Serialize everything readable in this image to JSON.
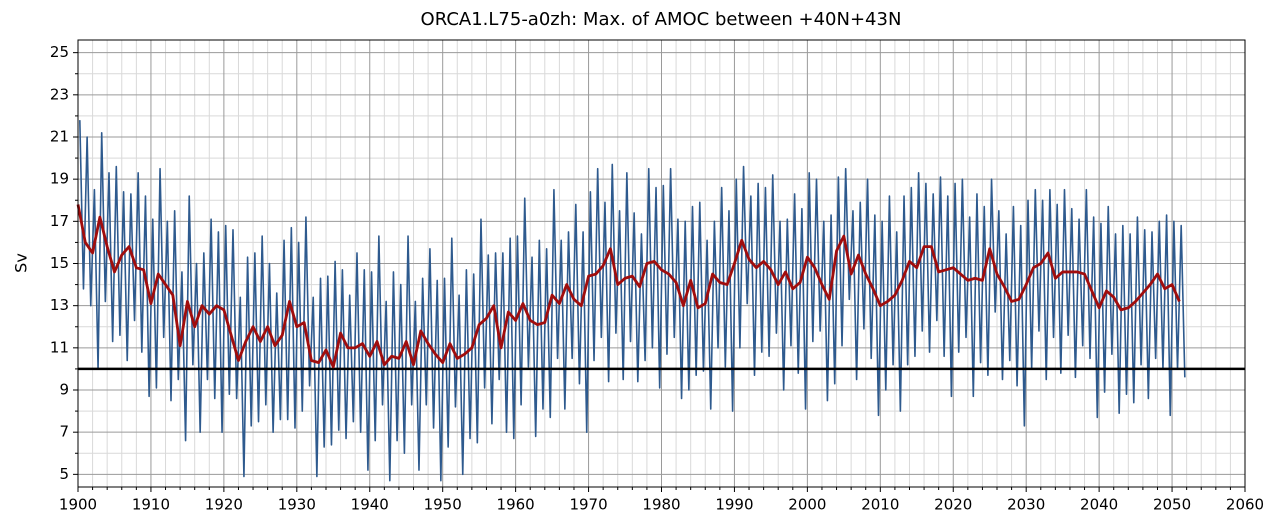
{
  "chart_data": {
    "type": "line",
    "title": "ORCA1.L75-a0zh: Max. of AMOC between +40N+43N",
    "ylabel": "Sv",
    "xlim": [
      1900,
      2060
    ],
    "ylim": [
      4.4,
      25.6
    ],
    "xticks": [
      1900,
      1910,
      1920,
      1930,
      1940,
      1950,
      1960,
      1970,
      1980,
      1990,
      2000,
      2010,
      2020,
      2030,
      2040,
      2050,
      2060
    ],
    "yticks": [
      5,
      7,
      9,
      11,
      13,
      15,
      17,
      19,
      21,
      23,
      25
    ],
    "xminorticks": [
      1902,
      1904,
      1906,
      1908,
      1912,
      1914,
      1916,
      1918,
      1922,
      1924,
      1926,
      1928,
      1932,
      1934,
      1936,
      1938,
      1942,
      1944,
      1946,
      1948,
      1952,
      1954,
      1956,
      1958,
      1962,
      1964,
      1966,
      1968,
      1972,
      1974,
      1976,
      1978,
      1982,
      1984,
      1986,
      1988,
      1992,
      1994,
      1996,
      1998,
      2002,
      2004,
      2006,
      2008,
      2012,
      2014,
      2016,
      2018,
      2022,
      2024,
      2026,
      2028,
      2032,
      2034,
      2036,
      2038,
      2042,
      2044,
      2046,
      2048,
      2052,
      2054,
      2056,
      2058
    ],
    "yminorticks": [
      6,
      8,
      10,
      12,
      14,
      16,
      18,
      20,
      22,
      24
    ],
    "grid": true,
    "hline": 10,
    "hline_color": "#000000",
    "series": [
      {
        "color": "#2e5a8e",
        "x": [
          1900.25,
          1900.75,
          1901.25,
          1901.75,
          1902.25,
          1902.75,
          1903.25,
          1903.75,
          1904.25,
          1904.75,
          1905.25,
          1905.75,
          1906.25,
          1906.75,
          1907.25,
          1907.75,
          1908.25,
          1908.75,
          1909.25,
          1909.75,
          1910.25,
          1910.75,
          1911.25,
          1911.75,
          1912.25,
          1912.75,
          1913.25,
          1913.75,
          1914.25,
          1914.75,
          1915.25,
          1915.75,
          1916.25,
          1916.75,
          1917.25,
          1917.75,
          1918.25,
          1918.75,
          1919.25,
          1919.75,
          1920.25,
          1920.75,
          1921.25,
          1921.75,
          1922.25,
          1922.75,
          1923.25,
          1923.75,
          1924.25,
          1924.75,
          1925.25,
          1925.75,
          1926.25,
          1926.75,
          1927.25,
          1927.75,
          1928.25,
          1928.75,
          1929.25,
          1929.75,
          1930.25,
          1930.75,
          1931.25,
          1931.75,
          1932.25,
          1932.75,
          1933.25,
          1933.75,
          1934.25,
          1934.75,
          1935.25,
          1935.75,
          1936.25,
          1936.75,
          1937.25,
          1937.75,
          1938.25,
          1938.75,
          1939.25,
          1939.75,
          1940.25,
          1940.75,
          1941.25,
          1941.75,
          1942.25,
          1942.75,
          1943.25,
          1943.75,
          1944.25,
          1944.75,
          1945.25,
          1945.75,
          1946.25,
          1946.75,
          1947.25,
          1947.75,
          1948.25,
          1948.75,
          1949.25,
          1949.75,
          1950.25,
          1950.75,
          1951.25,
          1951.75,
          1952.25,
          1952.75,
          1953.25,
          1953.75,
          1954.25,
          1954.75,
          1955.25,
          1955.75,
          1956.25,
          1956.75,
          1957.25,
          1957.75,
          1958.25,
          1958.75,
          1959.25,
          1959.75,
          1960.25,
          1960.75,
          1961.25,
          1961.75,
          1962.25,
          1962.75,
          1963.25,
          1963.75,
          1964.25,
          1964.75,
          1965.25,
          1965.75,
          1966.25,
          1966.75,
          1967.25,
          1967.75,
          1968.25,
          1968.75,
          1969.25,
          1969.75,
          1970.25,
          1970.75,
          1971.25,
          1971.75,
          1972.25,
          1972.75,
          1973.25,
          1973.75,
          1974.25,
          1974.75,
          1975.25,
          1975.75,
          1976.25,
          1976.75,
          1977.25,
          1977.75,
          1978.25,
          1978.75,
          1979.25,
          1979.75,
          1980.25,
          1980.75,
          1981.25,
          1981.75,
          1982.25,
          1982.75,
          1983.25,
          1983.75,
          1984.25,
          1984.75,
          1985.25,
          1985.75,
          1986.25,
          1986.75,
          1987.25,
          1987.75,
          1988.25,
          1988.75,
          1989.25,
          1989.75,
          1990.25,
          1990.75,
          1991.25,
          1991.75,
          1992.25,
          1992.75,
          1993.25,
          1993.75,
          1994.25,
          1994.75,
          1995.25,
          1995.75,
          1996.25,
          1996.75,
          1997.25,
          1997.75,
          1998.25,
          1998.75,
          1999.25,
          1999.75,
          2000.25,
          2000.75,
          2001.25,
          2001.75,
          2002.25,
          2002.75,
          2003.25,
          2003.75,
          2004.25,
          2004.75,
          2005.25,
          2005.75,
          2006.25,
          2006.75,
          2007.25,
          2007.75,
          2008.25,
          2008.75,
          2009.25,
          2009.75,
          2010.25,
          2010.75,
          2011.25,
          2011.75,
          2012.25,
          2012.75,
          2013.25,
          2013.75,
          2014.25,
          2014.75,
          2015.25,
          2015.75,
          2016.25,
          2016.75,
          2017.25,
          2017.75,
          2018.25,
          2018.75,
          2019.25,
          2019.75,
          2020.25,
          2020.75,
          2021.25,
          2021.75,
          2022.25,
          2022.75,
          2023.25,
          2023.75,
          2024.25,
          2024.75,
          2025.25,
          2025.75,
          2026.25,
          2026.75,
          2027.25,
          2027.75,
          2028.25,
          2028.75,
          2029.25,
          2029.75,
          2030.25,
          2030.75,
          2031.25,
          2031.75,
          2032.25,
          2032.75,
          2033.25,
          2033.75,
          2034.25,
          2034.75,
          2035.25,
          2035.75,
          2036.25,
          2036.75,
          2037.25,
          2037.75,
          2038.25,
          2038.75,
          2039.25,
          2039.75,
          2040.25,
          2040.75,
          2041.25,
          2041.75,
          2042.25,
          2042.75,
          2043.25,
          2043.75,
          2044.25,
          2044.75,
          2045.25,
          2045.75,
          2046.25,
          2046.75,
          2047.25,
          2047.75,
          2048.25,
          2048.75,
          2049.25,
          2049.75,
          2050.25,
          2050.75,
          2051.25,
          2051.75
        ],
        "values": [
          21.8,
          13.8,
          21.0,
          13.0,
          18.5,
          10.0,
          21.2,
          13.2,
          19.3,
          11.3,
          19.6,
          11.6,
          18.4,
          10.4,
          18.3,
          12.3,
          19.3,
          10.8,
          18.2,
          8.7,
          17.1,
          9.1,
          19.5,
          11.5,
          17.0,
          8.5,
          17.5,
          9.5,
          14.6,
          6.6,
          18.2,
          10.2,
          15.0,
          7.0,
          15.5,
          9.5,
          17.1,
          8.6,
          16.5,
          7.0,
          16.8,
          8.8,
          16.6,
          8.6,
          13.4,
          4.9,
          15.3,
          7.3,
          15.5,
          7.5,
          16.3,
          8.3,
          15.0,
          7.0,
          13.6,
          7.6,
          16.1,
          7.6,
          16.7,
          7.2,
          16.0,
          8.0,
          17.2,
          9.2,
          13.4,
          4.9,
          14.3,
          6.3,
          14.4,
          6.4,
          15.1,
          7.1,
          14.7,
          6.7,
          13.5,
          7.5,
          15.5,
          7.0,
          14.7,
          5.2,
          14.6,
          6.6,
          16.3,
          8.3,
          13.2,
          4.7,
          14.6,
          6.6,
          14.0,
          6.0,
          16.3,
          8.3,
          13.2,
          5.2,
          14.3,
          8.3,
          15.7,
          7.2,
          14.2,
          4.7,
          14.3,
          6.3,
          16.2,
          8.2,
          13.5,
          5.0,
          14.7,
          6.7,
          14.5,
          6.5,
          17.1,
          9.1,
          15.4,
          7.4,
          15.5,
          9.5,
          15.5,
          7.0,
          16.2,
          6.7,
          16.3,
          8.3,
          18.1,
          10.1,
          15.3,
          6.8,
          16.1,
          8.1,
          15.7,
          7.7,
          18.5,
          10.5,
          16.1,
          8.1,
          16.5,
          10.5,
          17.8,
          9.3,
          16.5,
          7.0,
          18.4,
          10.4,
          19.5,
          11.5,
          17.9,
          9.4,
          19.7,
          11.7,
          17.5,
          9.5,
          19.3,
          11.3,
          17.4,
          9.4,
          16.4,
          10.4,
          19.5,
          11.0,
          18.6,
          9.1,
          18.7,
          10.7,
          19.5,
          11.5,
          17.1,
          8.6,
          17.0,
          9.0,
          17.7,
          9.7,
          17.9,
          9.9,
          16.1,
          8.1,
          17.0,
          11.0,
          18.6,
          10.1,
          17.5,
          8.0,
          19.0,
          11.0,
          19.6,
          13.1,
          18.2,
          9.7,
          18.8,
          10.8,
          18.6,
          10.6,
          19.2,
          11.7,
          17.0,
          9.0,
          17.1,
          11.1,
          18.3,
          9.8,
          17.6,
          8.1,
          19.3,
          11.3,
          19.0,
          11.8,
          17.0,
          8.5,
          17.3,
          9.3,
          19.1,
          11.1,
          19.5,
          13.3,
          17.5,
          9.5,
          17.9,
          11.9,
          19.0,
          10.5,
          17.3,
          7.8,
          17.0,
          9.0,
          18.2,
          10.2,
          16.5,
          8.0,
          18.2,
          10.2,
          18.6,
          10.6,
          19.3,
          11.8,
          18.8,
          10.8,
          18.3,
          12.3,
          19.1,
          10.6,
          18.2,
          8.7,
          18.8,
          10.8,
          19.0,
          11.5,
          17.2,
          8.7,
          18.3,
          10.3,
          17.7,
          9.7,
          19.0,
          12.7,
          17.5,
          9.5,
          16.4,
          10.4,
          17.7,
          9.2,
          16.8,
          7.3,
          18.0,
          10.0,
          18.5,
          11.8,
          18.0,
          9.5,
          18.5,
          11.5,
          17.8,
          9.8,
          18.5,
          11.6,
          17.6,
          9.6,
          17.1,
          11.1,
          18.5,
          10.5,
          17.2,
          7.7,
          16.9,
          8.9,
          17.7,
          10.7,
          16.4,
          7.9,
          16.8,
          8.8,
          16.4,
          8.4,
          17.2,
          10.2,
          16.6,
          8.6,
          16.5,
          10.5,
          17.0,
          10.0,
          17.3,
          7.8,
          17.0,
          10.0,
          16.8,
          9.6
        ]
      },
      {
        "color": "#a00d0d",
        "x": [
          1900,
          1901,
          1902,
          1903,
          1904,
          1905,
          1906,
          1907,
          1908,
          1909,
          1910,
          1911,
          1912,
          1913,
          1914,
          1915,
          1916,
          1917,
          1918,
          1919,
          1920,
          1921,
          1922,
          1923,
          1924,
          1925,
          1926,
          1927,
          1928,
          1929,
          1930,
          1931,
          1932,
          1933,
          1934,
          1935,
          1936,
          1937,
          1938,
          1939,
          1940,
          1941,
          1942,
          1943,
          1944,
          1945,
          1946,
          1947,
          1948,
          1949,
          1950,
          1951,
          1952,
          1953,
          1954,
          1955,
          1956,
          1957,
          1958,
          1959,
          1960,
          1961,
          1962,
          1963,
          1964,
          1965,
          1966,
          1967,
          1968,
          1969,
          1970,
          1971,
          1972,
          1973,
          1974,
          1975,
          1976,
          1977,
          1978,
          1979,
          1980,
          1981,
          1982,
          1983,
          1984,
          1985,
          1986,
          1987,
          1988,
          1989,
          1990,
          1991,
          1992,
          1993,
          1994,
          1995,
          1996,
          1997,
          1998,
          1999,
          2000,
          2001,
          2002,
          2003,
          2004,
          2005,
          2006,
          2007,
          2008,
          2009,
          2010,
          2011,
          2012,
          2013,
          2014,
          2015,
          2016,
          2017,
          2018,
          2019,
          2020,
          2021,
          2022,
          2023,
          2024,
          2025,
          2026,
          2027,
          2028,
          2029,
          2030,
          2031,
          2032,
          2033,
          2034,
          2035,
          2036,
          2037,
          2038,
          2039,
          2040,
          2041,
          2042,
          2043,
          2044,
          2045,
          2046,
          2047,
          2048,
          2049,
          2050,
          2051
        ],
        "values": [
          17.8,
          16.0,
          15.5,
          17.2,
          15.8,
          14.6,
          15.4,
          15.8,
          14.8,
          14.7,
          13.1,
          14.5,
          14.0,
          13.5,
          11.1,
          13.2,
          12.0,
          13.0,
          12.6,
          13.0,
          12.8,
          11.6,
          10.4,
          11.3,
          12.0,
          11.3,
          12.0,
          11.1,
          11.6,
          13.2,
          12.0,
          12.2,
          10.4,
          10.3,
          10.9,
          10.1,
          11.7,
          11.0,
          11.0,
          11.2,
          10.6,
          11.3,
          10.2,
          10.6,
          10.5,
          11.3,
          10.2,
          11.8,
          11.2,
          10.7,
          10.3,
          11.2,
          10.5,
          10.7,
          11.0,
          12.1,
          12.4,
          13.0,
          11.0,
          12.7,
          12.3,
          13.1,
          12.3,
          12.1,
          12.2,
          13.5,
          13.1,
          14.0,
          13.3,
          13.0,
          14.4,
          14.5,
          14.9,
          15.7,
          14.0,
          14.3,
          14.4,
          13.9,
          15.0,
          15.1,
          14.7,
          14.5,
          14.1,
          13.0,
          14.2,
          12.9,
          13.1,
          14.5,
          14.1,
          14.0,
          15.0,
          16.1,
          15.2,
          14.8,
          15.1,
          14.7,
          14.0,
          14.6,
          13.8,
          14.1,
          15.3,
          14.8,
          14.0,
          13.3,
          15.6,
          16.3,
          14.5,
          15.4,
          14.5,
          13.8,
          13.0,
          13.2,
          13.5,
          14.2,
          15.1,
          14.8,
          15.8,
          15.8,
          14.6,
          14.7,
          14.8,
          14.5,
          14.2,
          14.3,
          14.2,
          15.7,
          14.5,
          13.9,
          13.2,
          13.3,
          14.0,
          14.8,
          15.0,
          15.5,
          14.3,
          14.6,
          14.6,
          14.6,
          14.5,
          13.7,
          12.9,
          13.7,
          13.4,
          12.8,
          12.9,
          13.2,
          13.6,
          14.0,
          14.5,
          13.8,
          14.0,
          13.2
        ]
      }
    ]
  }
}
